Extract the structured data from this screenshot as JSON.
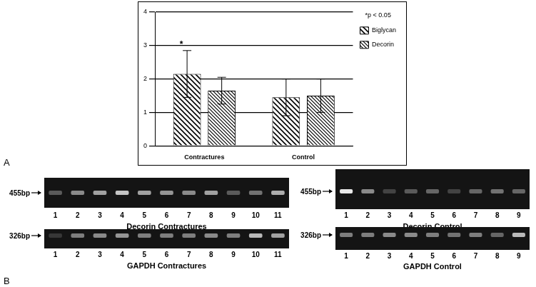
{
  "figure": {
    "panel_labels": [
      "A",
      "B"
    ]
  },
  "chart_data": {
    "type": "bar",
    "categories": [
      "Contractures",
      "Control"
    ],
    "series": [
      {
        "name": "Biglycan",
        "color": "#000000",
        "values": [
          2.15,
          1.45
        ],
        "errors": [
          0.7,
          0.55
        ]
      },
      {
        "name": "Decorin",
        "color": "#000000",
        "values": [
          1.65,
          1.5
        ],
        "errors": [
          0.4,
          0.5
        ]
      }
    ],
    "ylim": [
      0,
      4
    ],
    "yticks": [
      0,
      1,
      2,
      3,
      4
    ],
    "grid": true,
    "legend": "top-right",
    "annotations": [
      "*p < 0.05"
    ],
    "significance_marks": [
      {
        "category": "Contractures",
        "series": "Biglycan",
        "label": "*"
      }
    ]
  },
  "gel_panel": {
    "gels": [
      {
        "title": "Decorin Contractures",
        "size_label": "455bp",
        "lanes": [
          1,
          2,
          3,
          4,
          5,
          6,
          7,
          8,
          9,
          10,
          11
        ],
        "band_intensity": [
          0.3,
          0.5,
          0.6,
          0.75,
          0.6,
          0.55,
          0.5,
          0.6,
          0.3,
          0.4,
          0.65
        ]
      },
      {
        "title": "GAPDH Contractures",
        "size_label": "326bp",
        "lanes": [
          1,
          2,
          3,
          4,
          5,
          6,
          7,
          8,
          9,
          10,
          11
        ],
        "band_intensity": [
          0.15,
          0.45,
          0.5,
          0.55,
          0.45,
          0.45,
          0.45,
          0.5,
          0.45,
          0.7,
          0.6
        ]
      },
      {
        "title": "Decorin Control",
        "size_label": "455bp",
        "lanes": [
          1,
          2,
          3,
          4,
          5,
          6,
          7,
          8,
          9
        ],
        "band_intensity": [
          0.9,
          0.5,
          0.2,
          0.3,
          0.35,
          0.2,
          0.35,
          0.4,
          0.35
        ]
      },
      {
        "title": "GAPDH Control",
        "size_label": "326bp",
        "lanes": [
          1,
          2,
          3,
          4,
          5,
          6,
          7,
          8,
          9
        ],
        "band_intensity": [
          0.45,
          0.45,
          0.5,
          0.5,
          0.45,
          0.4,
          0.45,
          0.35,
          0.7
        ]
      }
    ]
  }
}
